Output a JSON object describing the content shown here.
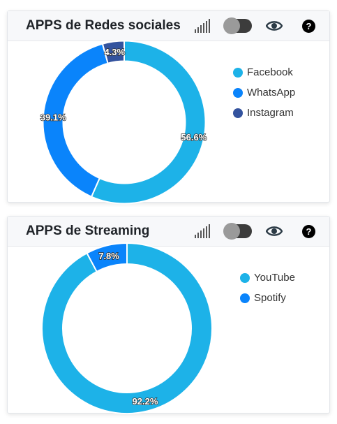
{
  "icons": {
    "signal": "signal-bars-icon",
    "toggle": "toggle-switch",
    "eye": "eye-icon",
    "help": "help-icon"
  },
  "help_glyph": "?",
  "chart_data": [
    {
      "type": "pie",
      "title": "APPS de Redes sociales",
      "categories": [
        "Facebook",
        "WhatsApp",
        "Instagram"
      ],
      "values": [
        56.6,
        39.1,
        4.3
      ],
      "value_labels": [
        "56.6%",
        "39.1%",
        "4.3%"
      ],
      "colors": [
        "#1db2e8",
        "#0a84fb",
        "#33539e"
      ],
      "donut": true,
      "legend_position": "right"
    },
    {
      "type": "pie",
      "title": "APPS de Streaming",
      "categories": [
        "YouTube",
        "Spotify"
      ],
      "values": [
        92.2,
        7.8
      ],
      "value_labels": [
        "92.2%",
        "7.8%"
      ],
      "colors": [
        "#1db2e8",
        "#0a84fb"
      ],
      "donut": true,
      "legend_position": "right"
    }
  ]
}
